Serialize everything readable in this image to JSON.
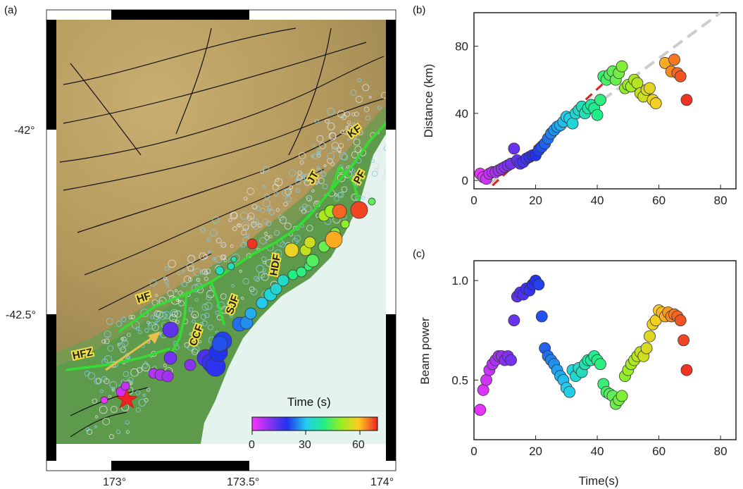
{
  "panels": {
    "a": {
      "label": "(a)",
      "lat_ticks": [
        "-42°",
        "-42.5°"
      ],
      "lon_ticks": [
        "173°",
        "173.5°",
        "174°"
      ],
      "fault_labels": [
        "HFZ",
        "HF",
        "CCF",
        "SJF",
        "HDF",
        "JT",
        "PF",
        "KF"
      ],
      "colorbar": {
        "title": "Time (s)",
        "ticks": [
          "0",
          "30",
          "60"
        ],
        "range": [
          0,
          70
        ]
      },
      "colors": {
        "land_high": "#b59a5e",
        "land_low": "#5e9a4c",
        "sea": "#e4f3ee",
        "faults": "#33dd33",
        "arrow": "#e8c050",
        "epicenter": "#ee2222"
      }
    },
    "b": {
      "label": "(b)"
    },
    "c": {
      "label": "(c)"
    }
  },
  "chart_data": [
    {
      "panel": "b",
      "type": "scatter",
      "title": "",
      "xlabel": "",
      "ylabel": "Distance (km)",
      "xlim": [
        0,
        85
      ],
      "ylim": [
        -5,
        100
      ],
      "xticks": [
        "0",
        "20",
        "40",
        "60",
        "80"
      ],
      "yticks": [
        "0",
        "40",
        "80"
      ],
      "points_t": [
        2,
        3,
        4,
        5,
        6,
        7,
        8,
        9,
        10,
        11,
        12,
        13,
        14,
        15,
        16,
        17,
        18,
        19,
        20,
        21,
        22,
        23,
        24,
        25,
        26,
        27,
        28,
        29,
        30,
        31,
        32,
        33,
        34,
        35,
        36,
        37,
        38,
        39,
        40,
        41,
        42,
        43,
        44,
        45,
        46,
        47,
        48,
        49,
        50,
        51,
        52,
        53,
        54,
        55,
        56,
        57,
        58,
        59,
        62,
        64,
        65,
        66,
        67,
        69
      ],
      "points_d": [
        4,
        2,
        1,
        4,
        5,
        5,
        6,
        7,
        8,
        9,
        10,
        19,
        12,
        10,
        11,
        13,
        14,
        15,
        15,
        18,
        20,
        22,
        25,
        28,
        30,
        32,
        33,
        35,
        38,
        37,
        34,
        40,
        42,
        44,
        40,
        43,
        45,
        43,
        39,
        48,
        62,
        60,
        63,
        65,
        60,
        64,
        68,
        55,
        57,
        56,
        60,
        58,
        52,
        50,
        54,
        55,
        48,
        46,
        70,
        65,
        72,
        64,
        62,
        48
      ],
      "trend_lines": [
        {
          "name": "",
          "style": "dashed",
          "color": "#cccccc",
          "x": [
            5,
            80
          ],
          "y": [
            -2,
            100
          ]
        },
        {
          "name": "",
          "style": "dashed",
          "color": "#dd2222",
          "x": [
            6,
            48
          ],
          "y": [
            -3,
            68
          ]
        }
      ]
    },
    {
      "panel": "c",
      "type": "scatter",
      "title": "",
      "xlabel": "Time(s)",
      "ylabel": "Beam power",
      "xlim": [
        0,
        85
      ],
      "ylim": [
        0.2,
        1.1
      ],
      "xticks": [
        "0",
        "20",
        "40",
        "60",
        "80"
      ],
      "yticks": [
        "0.5",
        "1.0"
      ],
      "x": [
        2,
        3,
        4,
        5,
        6,
        7,
        8,
        9,
        10,
        11,
        12,
        13,
        14,
        15,
        16,
        17,
        18,
        19,
        20,
        21,
        22,
        23,
        24,
        25,
        26,
        27,
        28,
        29,
        30,
        31,
        32,
        33,
        34,
        35,
        36,
        37,
        38,
        39,
        40,
        41,
        42,
        43,
        44,
        45,
        46,
        47,
        48,
        49,
        50,
        51,
        52,
        53,
        54,
        55,
        56,
        57,
        58,
        59,
        60,
        61,
        62,
        63,
        64,
        65,
        66,
        67,
        68,
        69
      ],
      "y": [
        0.35,
        0.45,
        0.5,
        0.55,
        0.58,
        0.6,
        0.62,
        0.62,
        0.6,
        0.62,
        0.6,
        0.8,
        0.92,
        0.94,
        0.93,
        0.96,
        0.95,
        0.98,
        1.0,
        0.98,
        0.82,
        0.66,
        0.62,
        0.6,
        0.58,
        0.55,
        0.52,
        0.5,
        0.46,
        0.44,
        0.55,
        0.52,
        0.56,
        0.54,
        0.58,
        0.6,
        0.6,
        0.62,
        0.6,
        0.58,
        0.48,
        0.44,
        0.43,
        0.42,
        0.38,
        0.4,
        0.42,
        0.52,
        0.55,
        0.58,
        0.6,
        0.62,
        0.64,
        0.62,
        0.66,
        0.72,
        0.78,
        0.8,
        0.85,
        0.84,
        0.82,
        0.84,
        0.82,
        0.83,
        0.82,
        0.8,
        0.7,
        0.55
      ]
    }
  ]
}
